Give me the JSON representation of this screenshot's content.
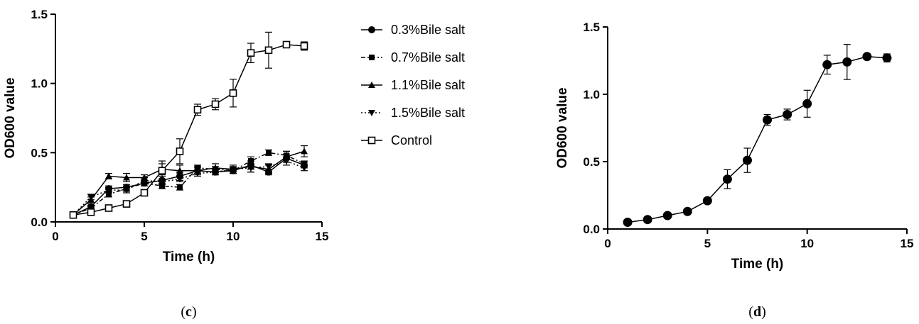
{
  "chart_data": [
    {
      "panel": "(c)",
      "panel_letter": "c",
      "type": "line",
      "xlabel": "Time (h)",
      "ylabel": "OD600 value",
      "xlim": [
        0,
        15
      ],
      "ylim": [
        0,
        1.5
      ],
      "xticks": [
        "0",
        "5",
        "10",
        "15"
      ],
      "yticks": [
        "0.0",
        "0.5",
        "1.0",
        "1.5"
      ],
      "grid": false,
      "legend_position": "right",
      "x": [
        1,
        2,
        3,
        4,
        5,
        6,
        7,
        8,
        9,
        10,
        11,
        12,
        13,
        14
      ],
      "series": [
        {
          "name": "0.3%Bile salt",
          "marker": "circle-filled",
          "line": "solid",
          "values": [
            0.05,
            0.11,
            0.24,
            0.25,
            0.28,
            0.3,
            0.33,
            0.37,
            0.36,
            0.37,
            0.41,
            0.36,
            0.46,
            0.41
          ],
          "errors": [
            0.01,
            0.02,
            0.02,
            0.02,
            0.02,
            0.03,
            0.03,
            0.02,
            0.02,
            0.02,
            0.03,
            0.02,
            0.03,
            0.02
          ]
        },
        {
          "name": "0.7%Bile salt",
          "marker": "square-filled",
          "line": "dashdot",
          "values": [
            0.05,
            0.1,
            0.2,
            0.24,
            0.28,
            0.26,
            0.25,
            0.39,
            0.38,
            0.37,
            0.44,
            0.5,
            0.48,
            0.42
          ],
          "errors": [
            0.01,
            0.02,
            0.02,
            0.02,
            0.02,
            0.02,
            0.02,
            0.02,
            0.02,
            0.02,
            0.03,
            0.02,
            0.03,
            0.02
          ]
        },
        {
          "name": "1.1%Bile salt",
          "marker": "triangle-up-filled",
          "line": "solid",
          "values": [
            0.05,
            0.16,
            0.33,
            0.32,
            0.32,
            0.38,
            0.37,
            0.37,
            0.39,
            0.38,
            0.4,
            0.38,
            0.47,
            0.51
          ],
          "errors": [
            0.01,
            0.02,
            0.02,
            0.03,
            0.02,
            0.04,
            0.04,
            0.03,
            0.03,
            0.03,
            0.04,
            0.03,
            0.04,
            0.04
          ]
        },
        {
          "name": "1.5%Bile salt",
          "marker": "triangle-down-filled",
          "line": "dotted",
          "values": [
            0.05,
            0.18,
            0.23,
            0.23,
            0.3,
            0.29,
            0.31,
            0.35,
            0.36,
            0.38,
            0.39,
            0.4,
            0.44,
            0.39
          ],
          "errors": [
            0.01,
            0.02,
            0.02,
            0.02,
            0.02,
            0.02,
            0.02,
            0.02,
            0.02,
            0.02,
            0.03,
            0.02,
            0.03,
            0.02
          ]
        },
        {
          "name": "Control",
          "marker": "square-open",
          "line": "solid",
          "values": [
            0.05,
            0.07,
            0.1,
            0.13,
            0.21,
            0.37,
            0.51,
            0.81,
            0.85,
            0.93,
            1.22,
            1.24,
            1.28,
            1.27
          ],
          "errors": [
            0.01,
            0.01,
            0.01,
            0.01,
            0.02,
            0.07,
            0.09,
            0.04,
            0.04,
            0.1,
            0.07,
            0.13,
            0.02,
            0.03
          ]
        }
      ]
    },
    {
      "panel": "(d)",
      "panel_letter": "d",
      "type": "line",
      "xlabel": "Time (h)",
      "ylabel": "OD600 value",
      "xlim": [
        0,
        15
      ],
      "ylim": [
        0,
        1.5
      ],
      "xticks": [
        "0",
        "5",
        "10",
        "15"
      ],
      "yticks": [
        "0.0",
        "0.5",
        "1.0",
        "1.5"
      ],
      "grid": false,
      "x": [
        1,
        2,
        3,
        4,
        5,
        6,
        7,
        8,
        9,
        10,
        11,
        12,
        13,
        14
      ],
      "series": [
        {
          "marker": "circle-filled",
          "line": "solid",
          "values": [
            0.05,
            0.07,
            0.1,
            0.13,
            0.21,
            0.37,
            0.51,
            0.81,
            0.85,
            0.93,
            1.22,
            1.24,
            1.28,
            1.27
          ],
          "errors": [
            0.01,
            0.01,
            0.01,
            0.01,
            0.02,
            0.07,
            0.09,
            0.04,
            0.04,
            0.1,
            0.07,
            0.13,
            0.02,
            0.03
          ]
        }
      ]
    }
  ]
}
